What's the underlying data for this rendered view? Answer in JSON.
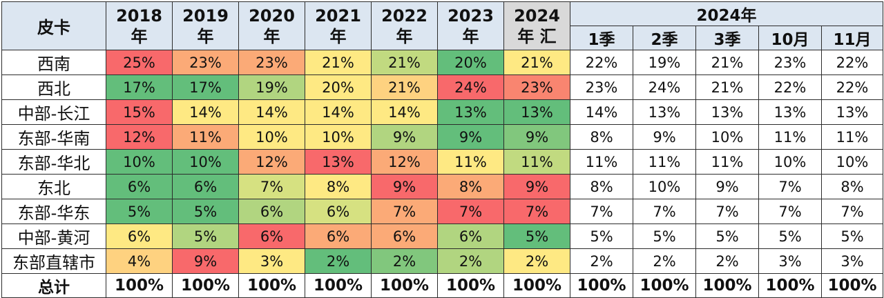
{
  "chart_data": {
    "type": "table",
    "header": {
      "corner": "皮卡",
      "years": [
        {
          "top": "2018",
          "bottom": "年"
        },
        {
          "top": "2019",
          "bottom": "年"
        },
        {
          "top": "2020",
          "bottom": "年"
        },
        {
          "top": "2021",
          "bottom": "年"
        },
        {
          "top": "2022",
          "bottom": "年"
        },
        {
          "top": "2023",
          "bottom": "年"
        },
        {
          "top": "2024",
          "bottom": "年 汇"
        }
      ],
      "group_label": "2024年",
      "sub_periods": [
        "1季",
        "2季",
        "3季",
        "10月",
        "11月"
      ]
    },
    "rows": [
      {
        "region": "西南",
        "years": [
          "25%",
          "23%",
          "23%",
          "21%",
          "21%",
          "20%",
          "21%"
        ],
        "periods": [
          "22%",
          "19%",
          "21%",
          "23%",
          "22%"
        ]
      },
      {
        "region": "西北",
        "years": [
          "17%",
          "17%",
          "19%",
          "20%",
          "21%",
          "24%",
          "23%"
        ],
        "periods": [
          "23%",
          "24%",
          "21%",
          "22%",
          "22%"
        ]
      },
      {
        "region": "中部-长江",
        "years": [
          "15%",
          "14%",
          "14%",
          "14%",
          "14%",
          "13%",
          "13%"
        ],
        "periods": [
          "14%",
          "13%",
          "13%",
          "13%",
          "13%"
        ]
      },
      {
        "region": "东部-华南",
        "years": [
          "12%",
          "11%",
          "10%",
          "10%",
          "9%",
          "9%",
          "9%"
        ],
        "periods": [
          "8%",
          "9%",
          "10%",
          "11%",
          "11%"
        ]
      },
      {
        "region": "东部-华北",
        "years": [
          "10%",
          "10%",
          "12%",
          "13%",
          "12%",
          "11%",
          "11%"
        ],
        "periods": [
          "11%",
          "11%",
          "11%",
          "10%",
          "10%"
        ]
      },
      {
        "region": "东北",
        "years": [
          "6%",
          "6%",
          "7%",
          "8%",
          "9%",
          "8%",
          "9%"
        ],
        "periods": [
          "8%",
          "10%",
          "9%",
          "7%",
          "8%"
        ]
      },
      {
        "region": "东部-华东",
        "years": [
          "5%",
          "5%",
          "6%",
          "6%",
          "7%",
          "7%",
          "7%"
        ],
        "periods": [
          "7%",
          "7%",
          "7%",
          "7%",
          "7%"
        ]
      },
      {
        "region": "中部-黄河",
        "years": [
          "6%",
          "5%",
          "6%",
          "6%",
          "6%",
          "6%",
          "5%"
        ],
        "periods": [
          "5%",
          "5%",
          "5%",
          "5%",
          "5%"
        ]
      },
      {
        "region": "东部直辖市",
        "years": [
          "4%",
          "9%",
          "3%",
          "2%",
          "2%",
          "2%",
          "2%"
        ],
        "periods": [
          "2%",
          "2%",
          "2%",
          "3%",
          "3%"
        ]
      }
    ],
    "colors": {
      "years": [
        [
          "#f8696b",
          "#fbaa77",
          "#fbaa77",
          "#fee983",
          "#c1da80",
          "#63be7b",
          "#fee983"
        ],
        [
          "#63be7b",
          "#63be7b",
          "#b1d580",
          "#fee983",
          "#fed280",
          "#f8696b",
          "#f98570"
        ],
        [
          "#f8696b",
          "#fee983",
          "#fee983",
          "#fee983",
          "#fee983",
          "#63be7b",
          "#63be7b"
        ],
        [
          "#f8696b",
          "#fbaa77",
          "#fee983",
          "#fee983",
          "#b1d580",
          "#63be7b",
          "#81c77d"
        ],
        [
          "#63be7b",
          "#63be7b",
          "#fbaa77",
          "#f8696b",
          "#fbaa77",
          "#fee983",
          "#c1da80"
        ],
        [
          "#63be7b",
          "#63be7b",
          "#d6e181",
          "#fee983",
          "#f8696b",
          "#fbaa77",
          "#f8696b"
        ],
        [
          "#63be7b",
          "#63be7b",
          "#b1d580",
          "#d6e181",
          "#fbaa77",
          "#f8696b",
          "#f8696b"
        ],
        [
          "#fee983",
          "#b1d580",
          "#f8696b",
          "#fbaa77",
          "#fbaa77",
          "#b1d580",
          "#63be7b"
        ],
        [
          "#fed280",
          "#f8696b",
          "#fee983",
          "#63be7b",
          "#81c77d",
          "#b1d580",
          "#fee983"
        ]
      ]
    },
    "total": {
      "label": "总计",
      "values": [
        "100%",
        "100%",
        "100%",
        "100%",
        "100%",
        "100%",
        "100%",
        "100%",
        "100%",
        "100%",
        "100%",
        "100%"
      ]
    }
  }
}
